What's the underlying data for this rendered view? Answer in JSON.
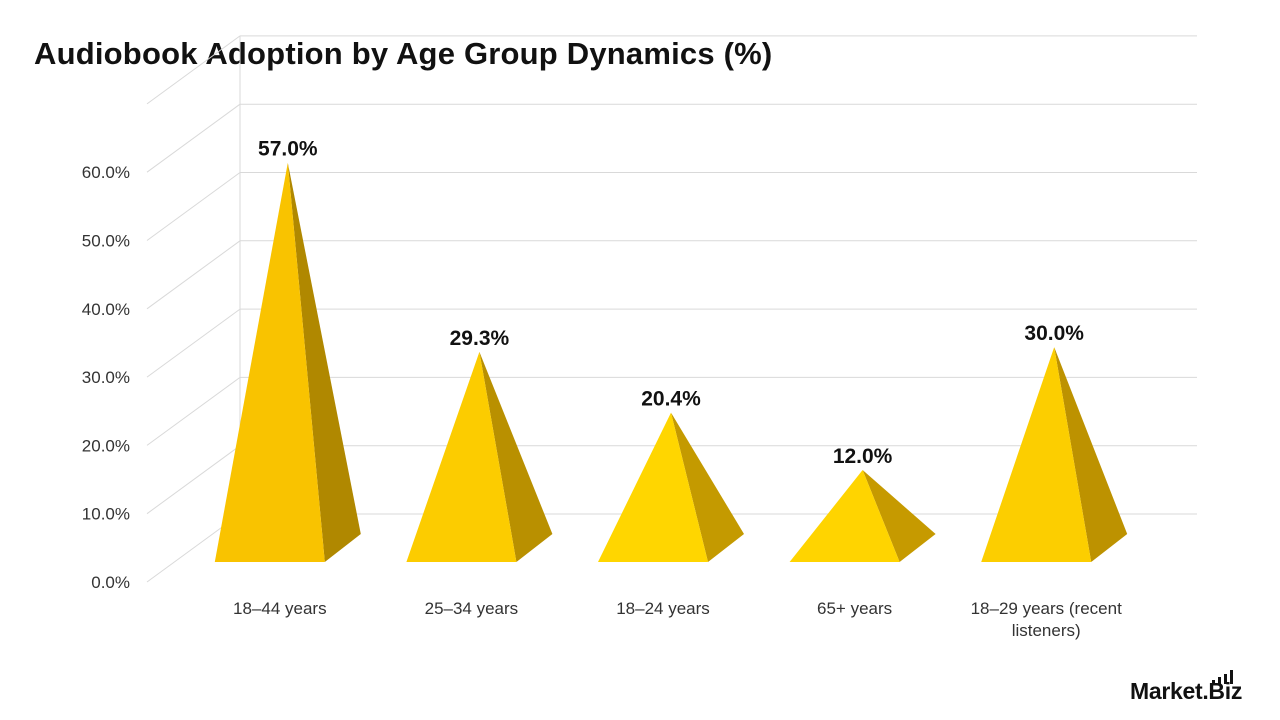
{
  "chart_data": {
    "type": "bar",
    "title": "Audiobook Adoption by Age Group Dynamics (%)",
    "categories": [
      "18–44 years",
      "25–34 years",
      "18–24 years",
      "65+ years",
      "18–29 years (recent listeners)"
    ],
    "values": [
      57.0,
      29.3,
      20.4,
      12.0,
      30.0
    ],
    "value_labels": [
      "57.0%",
      "29.3%",
      "20.4%",
      "12.0%",
      "30.0%"
    ],
    "y_ticks": [
      "0.0%",
      "10.0%",
      "20.0%",
      "30.0%",
      "40.0%",
      "50.0%",
      "60.0%"
    ],
    "ylim": [
      0,
      70
    ],
    "xlabel": "",
    "ylabel": "",
    "grid": true,
    "style": "3d-pyramid",
    "colors": {
      "front": [
        "#F9C300",
        "#FCCC00",
        "#FFD600",
        "#FFD400",
        "#FCCE00"
      ],
      "side": [
        "#B08800",
        "#B99000",
        "#C49A00",
        "#C69A00",
        "#BD9200"
      ]
    }
  },
  "logo": {
    "text": "Market.Biz"
  }
}
